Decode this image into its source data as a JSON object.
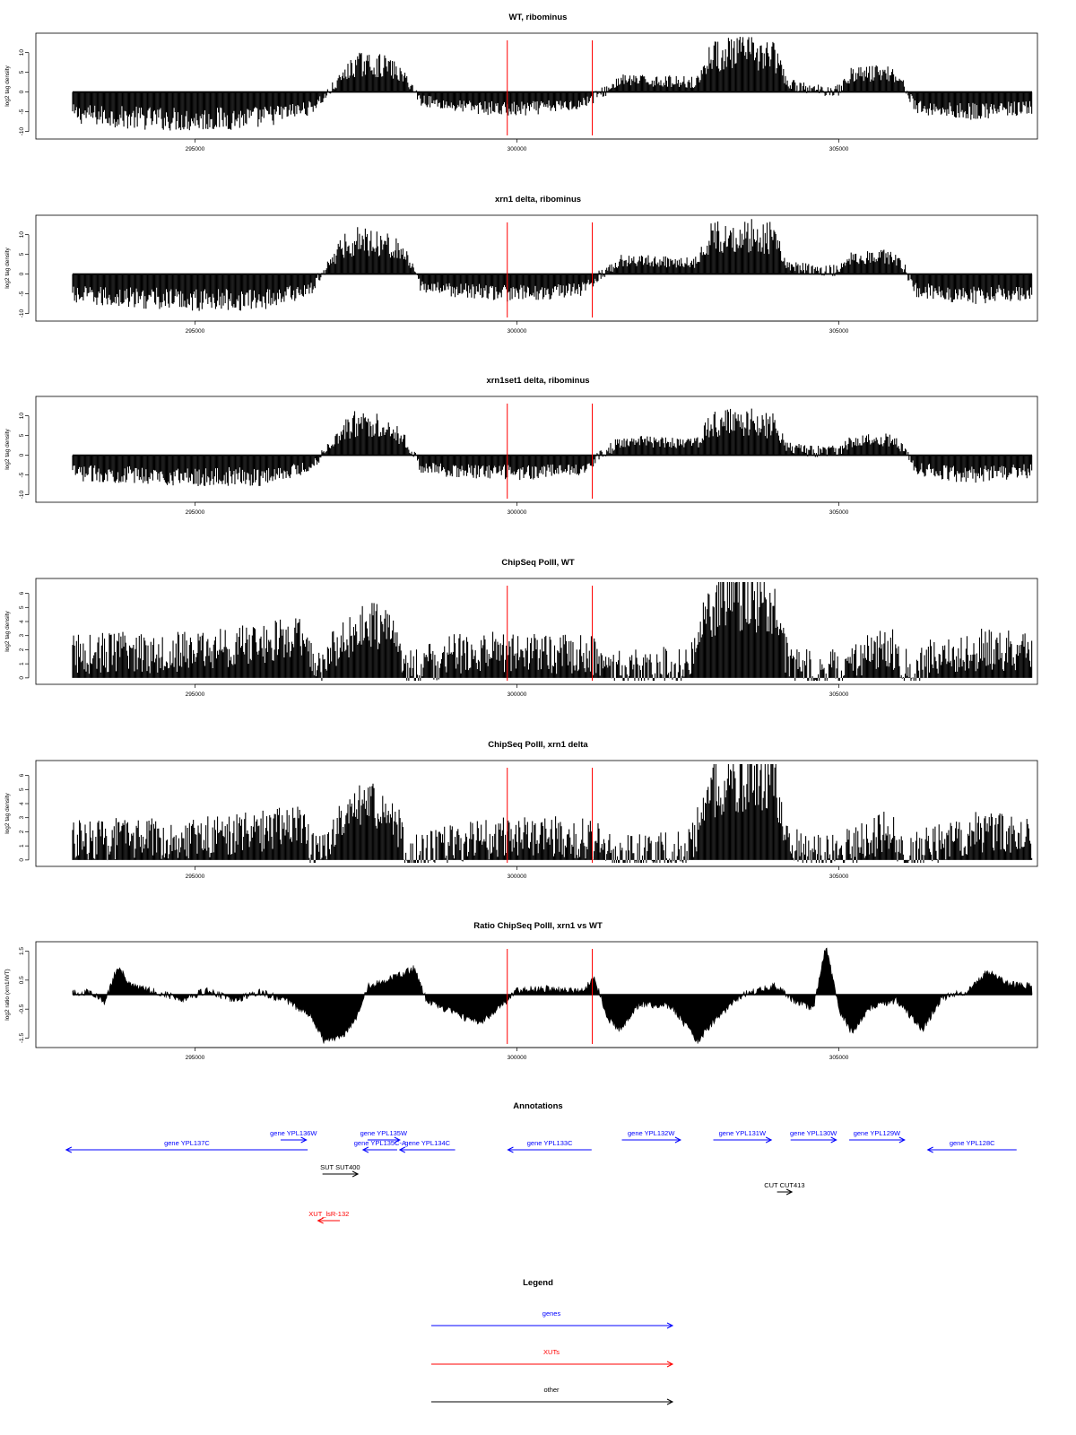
{
  "chart_data": [
    {
      "type": "bar",
      "title": "WT, ribominus",
      "ylabel": "log2 tag density",
      "xlim": [
        293100,
        308000
      ],
      "ylim": [
        -11,
        14
      ],
      "x_ticks": [
        295000,
        300000,
        305000
      ],
      "y_ticks": [
        -10,
        -5,
        0,
        5,
        10
      ],
      "y_tick_labels": [
        "-10",
        "-5",
        "0",
        "5",
        "10"
      ],
      "baseline_line": true,
      "markers_x": [
        299850,
        301170
      ],
      "marker_color": "#ff0000",
      "profile": [
        {
          "x": 293100,
          "y": -5.5
        },
        {
          "x": 294000,
          "y": -6.5
        },
        {
          "x": 295000,
          "y": -7
        },
        {
          "x": 296000,
          "y": -6.5
        },
        {
          "x": 296800,
          "y": -4
        },
        {
          "x": 297000,
          "y": -1.5
        },
        {
          "x": 297300,
          "y": 4
        },
        {
          "x": 297500,
          "y": 7
        },
        {
          "x": 298000,
          "y": 6.5
        },
        {
          "x": 298300,
          "y": 3
        },
        {
          "x": 298500,
          "y": -2
        },
        {
          "x": 299000,
          "y": -3.5
        },
        {
          "x": 300000,
          "y": -4.5
        },
        {
          "x": 301000,
          "y": -3
        },
        {
          "x": 301400,
          "y": 0.5
        },
        {
          "x": 301600,
          "y": 3
        },
        {
          "x": 302800,
          "y": 2.5
        },
        {
          "x": 303000,
          "y": 9
        },
        {
          "x": 303500,
          "y": 10
        },
        {
          "x": 304000,
          "y": 9
        },
        {
          "x": 304200,
          "y": 2
        },
        {
          "x": 304600,
          "y": 0.5
        },
        {
          "x": 305000,
          "y": 0.5
        },
        {
          "x": 305200,
          "y": 4.5
        },
        {
          "x": 305800,
          "y": 5
        },
        {
          "x": 306000,
          "y": 2
        },
        {
          "x": 306200,
          "y": -4
        },
        {
          "x": 307000,
          "y": -5
        },
        {
          "x": 308000,
          "y": -4
        }
      ]
    },
    {
      "type": "bar",
      "title": "xrn1 delta, ribominus",
      "ylabel": "log2 tag density",
      "xlim": [
        293100,
        308000
      ],
      "ylim": [
        -11,
        14
      ],
      "x_ticks": [
        295000,
        300000,
        305000
      ],
      "y_ticks": [
        -10,
        -5,
        0,
        5,
        10
      ],
      "y_tick_labels": [
        "-10",
        "-5",
        "0",
        "5",
        "10"
      ],
      "baseline_line": true,
      "markers_x": [
        299850,
        301170
      ],
      "marker_color": "#ff0000",
      "profile": [
        {
          "x": 293100,
          "y": -5.5
        },
        {
          "x": 294000,
          "y": -6
        },
        {
          "x": 295000,
          "y": -6.5
        },
        {
          "x": 296000,
          "y": -6.5
        },
        {
          "x": 296800,
          "y": -4
        },
        {
          "x": 297000,
          "y": 1
        },
        {
          "x": 297300,
          "y": 7
        },
        {
          "x": 297500,
          "y": 8.5
        },
        {
          "x": 298000,
          "y": 8
        },
        {
          "x": 298300,
          "y": 4
        },
        {
          "x": 298500,
          "y": -3
        },
        {
          "x": 299000,
          "y": -4
        },
        {
          "x": 300000,
          "y": -5
        },
        {
          "x": 301000,
          "y": -4
        },
        {
          "x": 301400,
          "y": 1
        },
        {
          "x": 301600,
          "y": 3.5
        },
        {
          "x": 302800,
          "y": 3
        },
        {
          "x": 303000,
          "y": 9
        },
        {
          "x": 303500,
          "y": 10
        },
        {
          "x": 304000,
          "y": 9
        },
        {
          "x": 304200,
          "y": 2
        },
        {
          "x": 304600,
          "y": 1
        },
        {
          "x": 305000,
          "y": 1
        },
        {
          "x": 305200,
          "y": 4.5
        },
        {
          "x": 305800,
          "y": 4.5
        },
        {
          "x": 306000,
          "y": 2
        },
        {
          "x": 306200,
          "y": -4
        },
        {
          "x": 307000,
          "y": -5.5
        },
        {
          "x": 308000,
          "y": -4.5
        }
      ]
    },
    {
      "type": "bar",
      "title": "xrn1set1 delta, ribominus",
      "ylabel": "log2 tag density",
      "xlim": [
        293100,
        308000
      ],
      "ylim": [
        -11,
        14
      ],
      "x_ticks": [
        295000,
        300000,
        305000
      ],
      "y_ticks": [
        -10,
        -5,
        0,
        5,
        10
      ],
      "y_tick_labels": [
        "-10",
        "-5",
        "0",
        "5",
        "10"
      ],
      "baseline_line": true,
      "markers_x": [
        299850,
        301170
      ],
      "marker_color": "#ff0000",
      "profile": [
        {
          "x": 293100,
          "y": -4.5
        },
        {
          "x": 294000,
          "y": -5
        },
        {
          "x": 295000,
          "y": -5.5
        },
        {
          "x": 296000,
          "y": -5.5
        },
        {
          "x": 296800,
          "y": -3
        },
        {
          "x": 297000,
          "y": 1
        },
        {
          "x": 297300,
          "y": 6
        },
        {
          "x": 297500,
          "y": 8
        },
        {
          "x": 298000,
          "y": 7.5
        },
        {
          "x": 298300,
          "y": 3
        },
        {
          "x": 298500,
          "y": -3
        },
        {
          "x": 299000,
          "y": -4
        },
        {
          "x": 300000,
          "y": -4.5
        },
        {
          "x": 301000,
          "y": -3.5
        },
        {
          "x": 301400,
          "y": 1
        },
        {
          "x": 301600,
          "y": 3.5
        },
        {
          "x": 302800,
          "y": 3
        },
        {
          "x": 303000,
          "y": 7.5
        },
        {
          "x": 303500,
          "y": 8.5
        },
        {
          "x": 304000,
          "y": 7.5
        },
        {
          "x": 304200,
          "y": 2
        },
        {
          "x": 304600,
          "y": 1
        },
        {
          "x": 305000,
          "y": 1
        },
        {
          "x": 305200,
          "y": 3.5
        },
        {
          "x": 305800,
          "y": 4
        },
        {
          "x": 306000,
          "y": 2
        },
        {
          "x": 306200,
          "y": -3.5
        },
        {
          "x": 307000,
          "y": -5
        },
        {
          "x": 308000,
          "y": -4
        }
      ]
    },
    {
      "type": "bar",
      "title": "ChipSeq PolII, WT",
      "ylabel": "log2 tag density",
      "xlim": [
        293100,
        308000
      ],
      "ylim": [
        -0.2,
        6.8
      ],
      "x_ticks": [
        295000,
        300000,
        305000
      ],
      "y_ticks": [
        0,
        1,
        2,
        3,
        4,
        5,
        6
      ],
      "y_tick_labels": [
        "0",
        "1",
        "2",
        "3",
        "4",
        "5",
        "6"
      ],
      "baseline_line": false,
      "markers_x": [
        299850,
        301170
      ],
      "marker_color": "#ff0000",
      "profile": [
        {
          "x": 293100,
          "y": 1.7
        },
        {
          "x": 294000,
          "y": 1.8
        },
        {
          "x": 295000,
          "y": 1.9
        },
        {
          "x": 296000,
          "y": 2.4
        },
        {
          "x": 296600,
          "y": 2.9
        },
        {
          "x": 296900,
          "y": 0.8
        },
        {
          "x": 297300,
          "y": 2.5
        },
        {
          "x": 297700,
          "y": 3.9
        },
        {
          "x": 298100,
          "y": 3.2
        },
        {
          "x": 298300,
          "y": 0.5
        },
        {
          "x": 299000,
          "y": 1.6
        },
        {
          "x": 300000,
          "y": 1.9
        },
        {
          "x": 301200,
          "y": 1.6
        },
        {
          "x": 301500,
          "y": 0.4
        },
        {
          "x": 302700,
          "y": 0.9
        },
        {
          "x": 303000,
          "y": 5.2
        },
        {
          "x": 303500,
          "y": 6.0
        },
        {
          "x": 304000,
          "y": 5.3
        },
        {
          "x": 304200,
          "y": 1.2
        },
        {
          "x": 304700,
          "y": 0.3
        },
        {
          "x": 305200,
          "y": 1.2
        },
        {
          "x": 305800,
          "y": 2.3
        },
        {
          "x": 306000,
          "y": 0.5
        },
        {
          "x": 306500,
          "y": 1.4
        },
        {
          "x": 307200,
          "y": 2.0
        },
        {
          "x": 308000,
          "y": 1.8
        }
      ]
    },
    {
      "type": "bar",
      "title": "ChipSeq PolII, xrn1 delta",
      "ylabel": "log2 tag density",
      "xlim": [
        293100,
        308000
      ],
      "ylim": [
        -0.2,
        6.8
      ],
      "x_ticks": [
        295000,
        300000,
        305000
      ],
      "y_ticks": [
        0,
        1,
        2,
        3,
        4,
        5,
        6
      ],
      "y_tick_labels": [
        "0",
        "1",
        "2",
        "3",
        "4",
        "5",
        "6"
      ],
      "baseline_line": false,
      "markers_x": [
        299850,
        301170
      ],
      "marker_color": "#ff0000",
      "profile": [
        {
          "x": 293100,
          "y": 1.4
        },
        {
          "x": 294000,
          "y": 1.5
        },
        {
          "x": 295000,
          "y": 1.6
        },
        {
          "x": 296000,
          "y": 2.0
        },
        {
          "x": 296600,
          "y": 2.8
        },
        {
          "x": 296900,
          "y": 0.3
        },
        {
          "x": 297300,
          "y": 2.7
        },
        {
          "x": 297700,
          "y": 4.2
        },
        {
          "x": 298100,
          "y": 3.2
        },
        {
          "x": 298300,
          "y": 0.2
        },
        {
          "x": 299000,
          "y": 1.1
        },
        {
          "x": 300000,
          "y": 1.8
        },
        {
          "x": 301200,
          "y": 1.4
        },
        {
          "x": 301500,
          "y": 0.2
        },
        {
          "x": 302700,
          "y": 0.8
        },
        {
          "x": 303000,
          "y": 5.0
        },
        {
          "x": 303500,
          "y": 6.0
        },
        {
          "x": 304000,
          "y": 5.5
        },
        {
          "x": 304200,
          "y": 1.0
        },
        {
          "x": 304700,
          "y": 0.3
        },
        {
          "x": 305200,
          "y": 0.8
        },
        {
          "x": 305800,
          "y": 2.3
        },
        {
          "x": 306000,
          "y": 0.3
        },
        {
          "x": 306500,
          "y": 1.1
        },
        {
          "x": 307200,
          "y": 2.0
        },
        {
          "x": 308000,
          "y": 1.6
        }
      ]
    },
    {
      "type": "area",
      "title": "Ratio ChipSeq PolII, xrn1 vs WT",
      "ylabel": "log2 ratio (xrn1/WT)",
      "xlim": [
        293100,
        308000
      ],
      "ylim": [
        -1.7,
        1.7
      ],
      "x_ticks": [
        295000,
        300000,
        305000
      ],
      "y_ticks": [
        -1.5,
        -0.5,
        0.5,
        1.5
      ],
      "y_tick_labels": [
        "-1.5",
        "-0.5",
        "0.5",
        "1.5"
      ],
      "baseline_line": true,
      "markers_x": [
        299850,
        301170
      ],
      "marker_color": "#ff0000",
      "profile": [
        {
          "x": 293100,
          "y": 0.05
        },
        {
          "x": 293400,
          "y": 0.1
        },
        {
          "x": 293600,
          "y": -0.3
        },
        {
          "x": 293800,
          "y": 1.0
        },
        {
          "x": 294000,
          "y": 0.3
        },
        {
          "x": 294400,
          "y": 0.1
        },
        {
          "x": 294800,
          "y": -0.15
        },
        {
          "x": 295200,
          "y": 0.15
        },
        {
          "x": 295600,
          "y": -0.2
        },
        {
          "x": 296000,
          "y": 0.1
        },
        {
          "x": 296400,
          "y": -0.2
        },
        {
          "x": 296800,
          "y": -0.7
        },
        {
          "x": 297000,
          "y": -1.6
        },
        {
          "x": 297300,
          "y": -1.4
        },
        {
          "x": 297500,
          "y": -0.8
        },
        {
          "x": 297700,
          "y": 0.3
        },
        {
          "x": 298000,
          "y": 0.5
        },
        {
          "x": 298400,
          "y": 0.9
        },
        {
          "x": 298600,
          "y": -0.2
        },
        {
          "x": 299000,
          "y": -0.6
        },
        {
          "x": 299400,
          "y": -1.0
        },
        {
          "x": 299700,
          "y": -0.5
        },
        {
          "x": 300000,
          "y": 0.15
        },
        {
          "x": 300500,
          "y": 0.2
        },
        {
          "x": 301000,
          "y": 0.1
        },
        {
          "x": 301200,
          "y": 0.6
        },
        {
          "x": 301400,
          "y": -0.8
        },
        {
          "x": 301600,
          "y": -1.2
        },
        {
          "x": 301900,
          "y": -0.3
        },
        {
          "x": 302400,
          "y": -0.4
        },
        {
          "x": 302800,
          "y": -1.6
        },
        {
          "x": 303100,
          "y": -0.8
        },
        {
          "x": 303500,
          "y": 0.0
        },
        {
          "x": 304000,
          "y": 0.3
        },
        {
          "x": 304300,
          "y": -0.2
        },
        {
          "x": 304600,
          "y": -0.5
        },
        {
          "x": 304800,
          "y": 1.7
        },
        {
          "x": 305000,
          "y": -0.5
        },
        {
          "x": 305200,
          "y": -1.3
        },
        {
          "x": 305500,
          "y": -0.4
        },
        {
          "x": 305900,
          "y": -0.2
        },
        {
          "x": 306300,
          "y": -1.2
        },
        {
          "x": 306600,
          "y": -0.1
        },
        {
          "x": 307000,
          "y": 0.1
        },
        {
          "x": 307300,
          "y": 0.8
        },
        {
          "x": 307600,
          "y": 0.4
        },
        {
          "x": 308000,
          "y": 0.3
        }
      ]
    }
  ],
  "annotations": {
    "title": "Annotations",
    "items": [
      {
        "label": "gene YPL137C",
        "start": 296750,
        "end": 293000,
        "row": 1,
        "category": "gene"
      },
      {
        "label": "gene YPL136W",
        "start": 296330,
        "end": 296730,
        "row": 0,
        "category": "gene"
      },
      {
        "label": "gene YPL135W",
        "start": 297680,
        "end": 298180,
        "row": 0,
        "category": "gene"
      },
      {
        "label": "gene YPL135C-A",
        "start": 298140,
        "end": 297610,
        "row": 1,
        "category": "gene"
      },
      {
        "label": "gene YPL134C",
        "start": 299040,
        "end": 298180,
        "row": 1,
        "category": "gene"
      },
      {
        "label": "gene YPL133C",
        "start": 301160,
        "end": 299860,
        "row": 1,
        "category": "gene"
      },
      {
        "label": "gene YPL132W",
        "start": 301630,
        "end": 302540,
        "row": 0,
        "category": "gene"
      },
      {
        "label": "gene YPL131W",
        "start": 303050,
        "end": 303950,
        "row": 0,
        "category": "gene"
      },
      {
        "label": "gene YPL130W",
        "start": 304250,
        "end": 304960,
        "row": 0,
        "category": "gene"
      },
      {
        "label": "gene YPL129W",
        "start": 305160,
        "end": 306020,
        "row": 0,
        "category": "gene"
      },
      {
        "label": "gene YPL128C",
        "start": 307760,
        "end": 306380,
        "row": 1,
        "category": "gene"
      },
      {
        "label": "SUT SUT400",
        "start": 296980,
        "end": 297530,
        "row": 2,
        "category": "other"
      },
      {
        "label": "CUT CUT413",
        "start": 304040,
        "end": 304270,
        "row": 3,
        "category": "other"
      },
      {
        "label": "XUT_lsR-132",
        "start": 297250,
        "end": 296910,
        "row": 4,
        "category": "xut"
      }
    ]
  },
  "legend": {
    "title": "Legend",
    "entries": [
      {
        "label": "genes",
        "color": "#0000ff"
      },
      {
        "label": "XUTs",
        "color": "#ff0000"
      },
      {
        "label": "other",
        "color": "#000000"
      }
    ]
  },
  "colors": {
    "gene": "#0000ff",
    "xut": "#ff0000",
    "other": "#000000",
    "bars": "#000000",
    "marker": "#ff0000"
  }
}
